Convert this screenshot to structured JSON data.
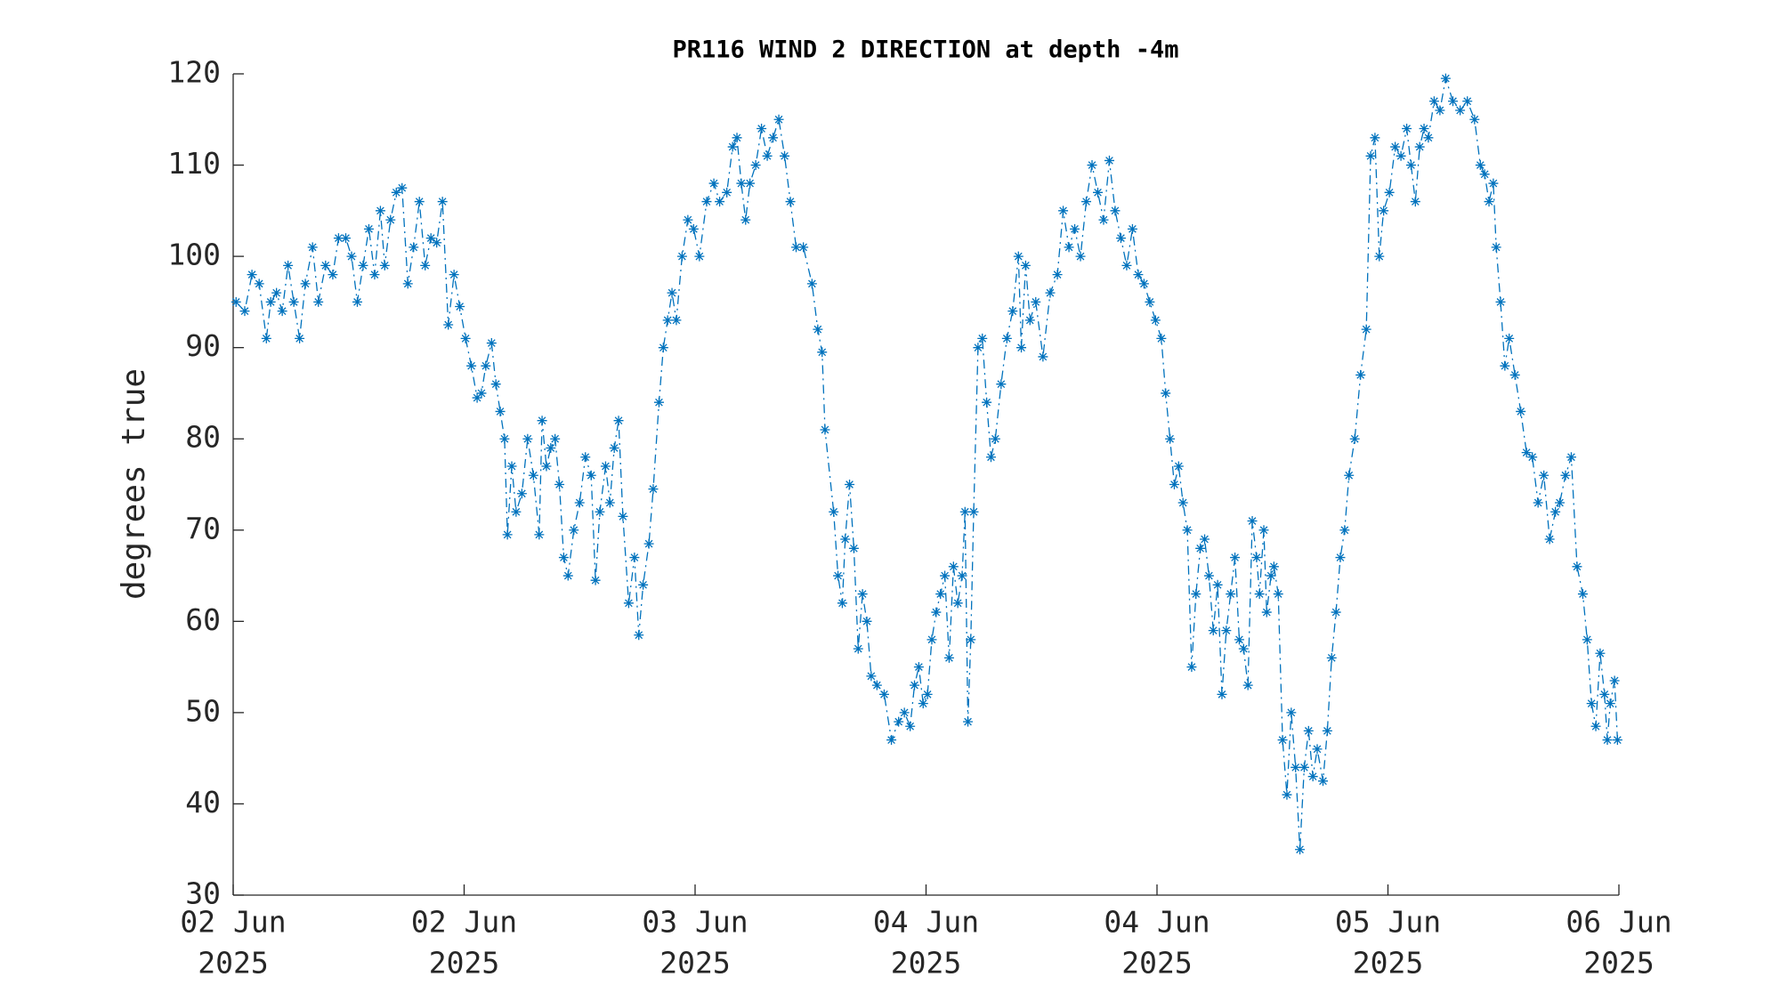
{
  "chart_data": {
    "type": "line",
    "title": "PR116 WIND 2 DIRECTION at depth -4m",
    "ylabel": "degrees true",
    "xlim": [
      0,
      96
    ],
    "ylim": [
      30,
      120
    ],
    "yticks": [
      30,
      40,
      50,
      60,
      70,
      80,
      90,
      100,
      110,
      120
    ],
    "xticks": [
      {
        "value": 0,
        "label": [
          "02 Jun",
          "2025"
        ]
      },
      {
        "value": 16,
        "label": [
          "02 Jun",
          "2025"
        ]
      },
      {
        "value": 32,
        "label": [
          "03 Jun",
          "2025"
        ]
      },
      {
        "value": 48,
        "label": [
          "04 Jun",
          "2025"
        ]
      },
      {
        "value": 64,
        "label": [
          "04 Jun",
          "2025"
        ]
      },
      {
        "value": 80,
        "label": [
          "05 Jun",
          "2025"
        ]
      },
      {
        "value": 96,
        "label": [
          "06 Jun",
          "2025"
        ]
      }
    ],
    "line_style": "dash-dot",
    "marker": "asterisk",
    "grid": false,
    "series": [
      {
        "color": "#0072bd",
        "x": [
          0.2,
          0.8,
          1.3,
          1.8,
          2.3,
          2.6,
          3.0,
          3.4,
          3.8,
          4.2,
          4.6,
          5.0,
          5.5,
          5.9,
          6.4,
          6.9,
          7.3,
          7.8,
          8.2,
          8.6,
          9.0,
          9.4,
          9.8,
          10.2,
          10.5,
          10.9,
          11.3,
          11.7,
          12.1,
          12.5,
          12.9,
          13.3,
          13.7,
          14.1,
          14.5,
          14.9,
          15.3,
          15.7,
          16.1,
          16.5,
          16.9,
          17.2,
          17.5,
          17.9,
          18.2,
          18.5,
          18.8,
          19.0,
          19.3,
          19.6,
          20.0,
          20.4,
          20.8,
          21.2,
          21.4,
          21.7,
          22.0,
          22.3,
          22.6,
          22.9,
          23.2,
          23.6,
          24.0,
          24.4,
          24.8,
          25.1,
          25.4,
          25.8,
          26.1,
          26.4,
          26.7,
          27.0,
          27.4,
          27.8,
          28.1,
          28.4,
          28.8,
          29.1,
          29.5,
          29.8,
          30.1,
          30.4,
          30.7,
          31.1,
          31.5,
          31.9,
          32.3,
          32.8,
          33.3,
          33.7,
          34.2,
          34.6,
          34.9,
          35.2,
          35.5,
          35.8,
          36.2,
          36.6,
          37.0,
          37.4,
          37.8,
          38.2,
          38.6,
          39.0,
          39.5,
          40.1,
          40.5,
          40.8,
          41.0,
          41.6,
          41.9,
          42.2,
          42.4,
          42.7,
          43.0,
          43.3,
          43.6,
          43.9,
          44.2,
          44.6,
          45.1,
          45.6,
          46.1,
          46.5,
          46.9,
          47.2,
          47.5,
          47.8,
          48.1,
          48.4,
          48.7,
          49.0,
          49.3,
          49.6,
          49.9,
          50.2,
          50.5,
          50.7,
          50.9,
          51.1,
          51.3,
          51.6,
          51.9,
          52.2,
          52.5,
          52.8,
          53.2,
          53.6,
          54.0,
          54.4,
          54.6,
          54.9,
          55.2,
          55.6,
          56.1,
          56.6,
          57.1,
          57.5,
          57.9,
          58.3,
          58.7,
          59.1,
          59.5,
          59.9,
          60.3,
          60.7,
          61.1,
          61.5,
          61.9,
          62.3,
          62.7,
          63.1,
          63.5,
          63.9,
          64.3,
          64.6,
          64.9,
          65.2,
          65.5,
          65.8,
          66.1,
          66.4,
          66.7,
          67.0,
          67.3,
          67.6,
          67.9,
          68.2,
          68.5,
          68.8,
          69.1,
          69.4,
          69.7,
          70.0,
          70.3,
          70.6,
          70.9,
          71.1,
          71.4,
          71.6,
          71.9,
          72.1,
          72.4,
          72.7,
          73.0,
          73.3,
          73.6,
          73.9,
          74.2,
          74.5,
          74.8,
          75.1,
          75.5,
          75.8,
          76.1,
          76.4,
          76.7,
          77.0,
          77.3,
          77.7,
          78.1,
          78.5,
          78.8,
          79.1,
          79.4,
          79.7,
          80.1,
          80.5,
          80.9,
          81.3,
          81.6,
          81.9,
          82.2,
          82.5,
          82.8,
          83.2,
          83.6,
          84.0,
          84.5,
          85.0,
          85.5,
          86.0,
          86.4,
          86.7,
          87.0,
          87.3,
          87.5,
          87.8,
          88.1,
          88.4,
          88.8,
          89.2,
          89.6,
          90.0,
          90.4,
          90.8,
          91.2,
          91.6,
          91.9,
          92.3,
          92.7,
          93.1,
          93.5,
          93.8,
          94.1,
          94.4,
          94.7,
          95.0,
          95.2,
          95.4,
          95.7,
          95.9
        ],
        "values": [
          95,
          94,
          98,
          97,
          91,
          95,
          96,
          94,
          99,
          95,
          91,
          97,
          101,
          95,
          99,
          98,
          102,
          102,
          100,
          95,
          99,
          103,
          98,
          105,
          99,
          104,
          107,
          107.5,
          97,
          101,
          106,
          99,
          102,
          101.5,
          106,
          92.5,
          98,
          94.5,
          91,
          88,
          84.5,
          85,
          88,
          90.5,
          86,
          83,
          80,
          69.5,
          77,
          72,
          74,
          80,
          76,
          69.5,
          82,
          77,
          79,
          80,
          75,
          67,
          65,
          70,
          73,
          78,
          76,
          64.5,
          72,
          77,
          73,
          79,
          82,
          71.5,
          62,
          67,
          58.5,
          64,
          68.5,
          74.5,
          84,
          90,
          93,
          96,
          93,
          100,
          104,
          103,
          100,
          106,
          108,
          106,
          107,
          112,
          113,
          108,
          104,
          108,
          110,
          114,
          111,
          113,
          115,
          111,
          106,
          101,
          101,
          97,
          92,
          89.5,
          81,
          72,
          65,
          62,
          69,
          75,
          68,
          57,
          63,
          60,
          54,
          53,
          52,
          47,
          49,
          50,
          48.5,
          53,
          55,
          51,
          52,
          58,
          61,
          63,
          65,
          56,
          66,
          62,
          65,
          72,
          49,
          58,
          72,
          90,
          91,
          84,
          78,
          80,
          86,
          91,
          94,
          100,
          90,
          99,
          93,
          95,
          89,
          96,
          98,
          105,
          101,
          103,
          100,
          106,
          110,
          107,
          104,
          110.5,
          105,
          102,
          99,
          103,
          98,
          97,
          95,
          93,
          91,
          85,
          80,
          75,
          77,
          73,
          70,
          55,
          63,
          68,
          69,
          65,
          59,
          64,
          52,
          59,
          63,
          67,
          58,
          57,
          53,
          71,
          67,
          63,
          70,
          61,
          65,
          66,
          63,
          47,
          41,
          50,
          44,
          35,
          44,
          48,
          43,
          46,
          42.5,
          48,
          56,
          61,
          67,
          70,
          76,
          80,
          87,
          92,
          111,
          113,
          100,
          105,
          107,
          112,
          111,
          114,
          110,
          106,
          112,
          114,
          113,
          117,
          116,
          119.5,
          117,
          116,
          117,
          115,
          110,
          109,
          106,
          108,
          101,
          95,
          88,
          91,
          87,
          83,
          78.5,
          78,
          73,
          76,
          69,
          72,
          73,
          76,
          78,
          66,
          63,
          58,
          51,
          48.5,
          56.5,
          52,
          47,
          51,
          53.5,
          47
        ]
      }
    ]
  }
}
